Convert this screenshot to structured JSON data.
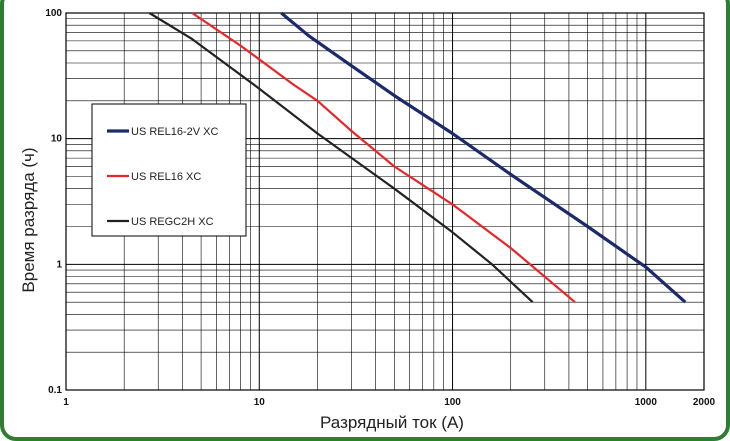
{
  "chart_data": {
    "type": "line",
    "title": "",
    "xlabel": "Разрядный ток (А)",
    "ylabel": "Время разряда (ч)",
    "xscale": "log",
    "yscale": "log",
    "xlim": [
      1,
      2000
    ],
    "ylim": [
      0.1,
      100
    ],
    "x_ticks": [
      {
        "value": 1,
        "label": "1"
      },
      {
        "value": 10,
        "label": "10"
      },
      {
        "value": 100,
        "label": "100"
      },
      {
        "value": 1000,
        "label": "1000"
      },
      {
        "value": 2000,
        "label": "2000"
      }
    ],
    "y_ticks": [
      {
        "value": 100,
        "label": "100"
      },
      {
        "value": 10,
        "label": "10"
      },
      {
        "value": 1,
        "label": "1"
      },
      {
        "value": 0.1,
        "label": "0.1"
      }
    ],
    "grid": true,
    "legend_position": "left",
    "series": [
      {
        "name": "US REL16-2V XC",
        "color": "#1a2a6c",
        "points": [
          [
            13,
            100
          ],
          [
            18,
            66
          ],
          [
            30,
            38
          ],
          [
            50,
            22
          ],
          [
            100,
            11
          ],
          [
            200,
            5.2
          ],
          [
            500,
            2.0
          ],
          [
            1000,
            0.95
          ],
          [
            1600,
            0.5
          ]
        ]
      },
      {
        "name": "US REL16  XC",
        "color": "#e8262a",
        "points": [
          [
            4.5,
            100
          ],
          [
            8,
            55
          ],
          [
            15,
            27
          ],
          [
            20,
            20
          ],
          [
            30,
            11.5
          ],
          [
            50,
            6
          ],
          [
            100,
            3
          ],
          [
            200,
            1.35
          ],
          [
            430,
            0.5
          ]
        ]
      },
      {
        "name": "US REGC2H XC",
        "color": "#222222",
        "points": [
          [
            2.7,
            100
          ],
          [
            4.5,
            62
          ],
          [
            10,
            25
          ],
          [
            20,
            11
          ],
          [
            50,
            4
          ],
          [
            100,
            1.8
          ],
          [
            160,
            1.0
          ],
          [
            260,
            0.5
          ]
        ]
      }
    ]
  }
}
